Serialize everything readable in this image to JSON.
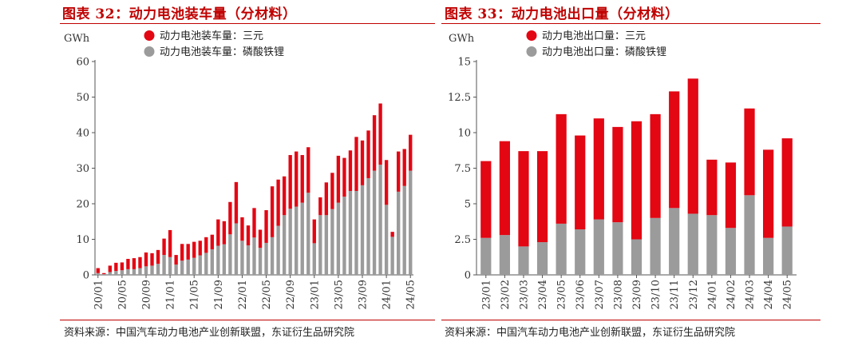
{
  "colors": {
    "red": "#e30613",
    "gray": "#9b9b9b",
    "title": "#c00000",
    "axis": "#555555"
  },
  "chart_data": [
    {
      "type": "bar",
      "stacked": true,
      "title": "图表 32：动力电池装车量（分材料）",
      "ylabel": "GWh",
      "ylim": [
        0,
        60
      ],
      "yticks": [
        0,
        10,
        20,
        30,
        40,
        50,
        60
      ],
      "ytick_labels": [
        "0",
        "10",
        "20",
        "30",
        "40",
        "50",
        "60"
      ],
      "categories": [
        "20/01",
        "20/02",
        "20/03",
        "20/04",
        "20/05",
        "20/06",
        "20/07",
        "20/08",
        "20/09",
        "20/10",
        "20/11",
        "20/12",
        "21/01",
        "21/02",
        "21/03",
        "21/04",
        "21/05",
        "21/06",
        "21/07",
        "21/08",
        "21/09",
        "21/10",
        "21/11",
        "21/12",
        "22/01",
        "22/02",
        "22/03",
        "22/04",
        "22/05",
        "22/06",
        "22/07",
        "22/08",
        "22/09",
        "22/10",
        "22/11",
        "22/12",
        "23/01",
        "23/02",
        "23/03",
        "23/04",
        "23/05",
        "23/06",
        "23/07",
        "23/08",
        "23/09",
        "23/10",
        "23/11",
        "23/12",
        "24/01",
        "24/02",
        "24/03",
        "24/04",
        "24/05"
      ],
      "xtick_labels": [
        "20/01",
        "20/05",
        "20/09",
        "21/01",
        "21/05",
        "21/09",
        "22/01",
        "22/05",
        "22/09",
        "23/01",
        "23/05",
        "23/09",
        "24/01",
        "24/05"
      ],
      "xtick_every": 4,
      "series": [
        {
          "name": "动力电池装车量：磷酸铁锂",
          "color": "gray",
          "values": [
            0.5,
            0.2,
            0.8,
            1.1,
            1.3,
            1.6,
            1.6,
            1.9,
            2.4,
            2.6,
            3.1,
            5.6,
            5.0,
            2.9,
            4.0,
            4.3,
            4.8,
            5.5,
            6.2,
            7.2,
            8.2,
            8.6,
            11.4,
            14.5,
            9.6,
            8.3,
            10.5,
            7.6,
            9.0,
            10.6,
            13.8,
            16.8,
            18.6,
            19.2,
            20.3,
            23.1,
            8.9,
            16.8,
            16.8,
            18.5,
            20.3,
            22.0,
            23.6,
            23.6,
            25.2,
            27.2,
            29.3,
            31.0,
            19.7,
            10.7,
            23.4,
            25.0,
            29.3
          ]
        },
        {
          "name": "动力电池装车量：三元",
          "color": "red",
          "values": [
            1.4,
            0.3,
            1.8,
            2.3,
            2.2,
            2.9,
            3.1,
            3.1,
            3.9,
            3.5,
            3.9,
            4.6,
            7.6,
            2.7,
            4.7,
            4.4,
            4.5,
            4.1,
            4.4,
            4.1,
            7.4,
            6.5,
            9.1,
            11.6,
            6.6,
            5.6,
            8.3,
            5.1,
            9.2,
            14.3,
            13.0,
            10.9,
            15.1,
            15.5,
            13.4,
            12.8,
            6.7,
            5.0,
            9.2,
            10.2,
            13.2,
            10.9,
            11.4,
            15.2,
            12.6,
            13.4,
            15.6,
            17.2,
            12.6,
            1.4,
            11.3,
            10.4,
            10.1
          ]
        }
      ],
      "legend": [
        "动力电池装车量：三元",
        "动力电池装车量：磷酸铁锂"
      ],
      "source": "资料来源：中国汽车动力电池产业创新联盟，东证衍生品研究院"
    },
    {
      "type": "bar",
      "stacked": true,
      "title": "图表 33：动力电池出口量（分材料）",
      "ylabel": "GWh",
      "ylim": [
        0,
        15
      ],
      "yticks": [
        0,
        2.5,
        5,
        7.5,
        10,
        12.5,
        15
      ],
      "ytick_labels": [
        "0",
        "2.5",
        "5",
        "7.5",
        "10",
        "12.5",
        "15"
      ],
      "categories": [
        "23/01",
        "23/02",
        "23/03",
        "23/04",
        "23/05",
        "23/06",
        "23/07",
        "23/08",
        "23/09",
        "23/10",
        "23/11",
        "23/12",
        "24/01",
        "24/02",
        "24/03",
        "24/04",
        "24/05"
      ],
      "xtick_labels": [
        "23/01",
        "23/02",
        "23/03",
        "23/04",
        "23/05",
        "23/06",
        "23/07",
        "23/08",
        "23/09",
        "23/10",
        "23/11",
        "23/12",
        "24/01",
        "24/02",
        "24/03",
        "24/04",
        "24/05"
      ],
      "xtick_every": 1,
      "series": [
        {
          "name": "动力电池出口量：磷酸铁锂",
          "color": "gray",
          "values": [
            2.6,
            2.8,
            2.0,
            2.3,
            3.6,
            3.2,
            3.9,
            3.7,
            2.5,
            4.0,
            4.7,
            4.3,
            4.2,
            3.3,
            5.6,
            2.6,
            3.4
          ]
        },
        {
          "name": "动力电池出口量：三元",
          "color": "red",
          "values": [
            5.4,
            6.6,
            6.7,
            6.4,
            7.7,
            6.6,
            7.1,
            6.7,
            8.3,
            7.3,
            8.2,
            9.5,
            3.9,
            4.6,
            6.1,
            6.2,
            6.2
          ]
        }
      ],
      "legend": [
        "动力电池出口量：三元",
        "动力电池出口量：磷酸铁锂"
      ],
      "source": "资料来源：中国汽车动力电池产业创新联盟，东证衍生品研究院"
    }
  ]
}
